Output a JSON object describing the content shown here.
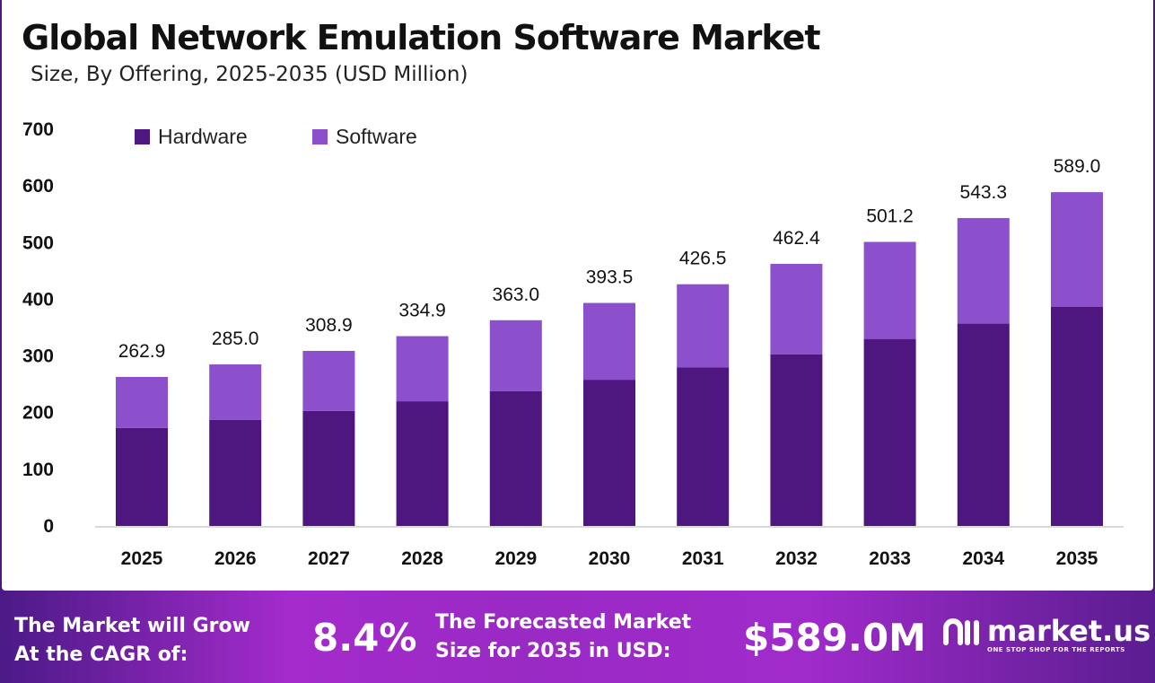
{
  "header": {
    "title": "Global Network Emulation Software Market",
    "subtitle": "Size, By Offering, 2025-2035 (USD Million)"
  },
  "chart_data": {
    "type": "bar",
    "stacked": true,
    "categories": [
      "2025",
      "2026",
      "2027",
      "2028",
      "2029",
      "2030",
      "2031",
      "2032",
      "2033",
      "2034",
      "2035"
    ],
    "series": [
      {
        "name": "Hardware",
        "color": "#4e1780",
        "values": [
          173,
          187,
          203,
          220,
          238,
          258,
          280,
          303,
          330,
          357,
          387
        ]
      },
      {
        "name": "Software",
        "color": "#8c50cc",
        "values": [
          89.9,
          98.0,
          105.9,
          114.9,
          125.0,
          135.5,
          146.5,
          159.4,
          171.2,
          186.3,
          202.0
        ]
      }
    ],
    "totals": [
      "262.9",
      "285.0",
      "308.9",
      "334.9",
      "363.0",
      "393.5",
      "426.5",
      "462.4",
      "501.2",
      "543.3",
      "589.0"
    ],
    "ylim": [
      0,
      700
    ],
    "yticks": [
      "0",
      "100",
      "200",
      "300",
      "400",
      "500",
      "600",
      "700"
    ],
    "legend": "top-left",
    "grid": false
  },
  "footer": {
    "cagr_label_1": "The Market will Grow",
    "cagr_label_2": "At the CAGR of:",
    "cagr_value": "8.4%",
    "forecast_label_1": "The Forecasted Market",
    "forecast_label_2": "Size for 2035 in USD:",
    "forecast_value": "$589.0M",
    "logo_name": "market.us",
    "logo_tagline": "ONE STOP SHOP FOR THE REPORTS"
  }
}
